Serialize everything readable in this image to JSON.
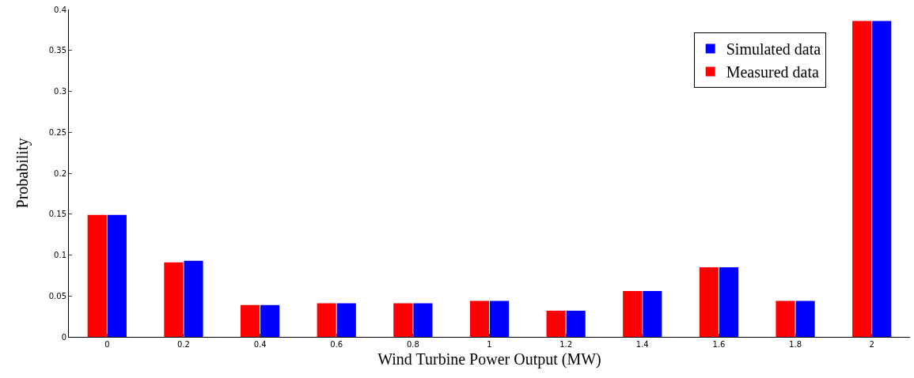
{
  "chart_data": {
    "type": "bar",
    "xlabel": "Wind Turbine Power Output (MW)",
    "ylabel": "Probability",
    "categories": [
      "0",
      "0.2",
      "0.4",
      "0.6",
      "0.8",
      "1",
      "1.2",
      "1.4",
      "1.6",
      "1.8",
      "2"
    ],
    "series": [
      {
        "name": "Measured data",
        "color": "#ff0000",
        "values": [
          0.149,
          0.091,
          0.039,
          0.041,
          0.041,
          0.044,
          0.032,
          0.056,
          0.085,
          0.044,
          0.386
        ]
      },
      {
        "name": "Simulated data",
        "color": "#0000ff",
        "values": [
          0.149,
          0.093,
          0.039,
          0.041,
          0.041,
          0.044,
          0.032,
          0.056,
          0.085,
          0.044,
          0.386
        ]
      }
    ],
    "ylim": [
      0,
      0.4
    ],
    "yticks": [
      0,
      0.05,
      0.1,
      0.15,
      0.2,
      0.25,
      0.3,
      0.35,
      0.4
    ],
    "grid": false,
    "legend": "top right"
  }
}
